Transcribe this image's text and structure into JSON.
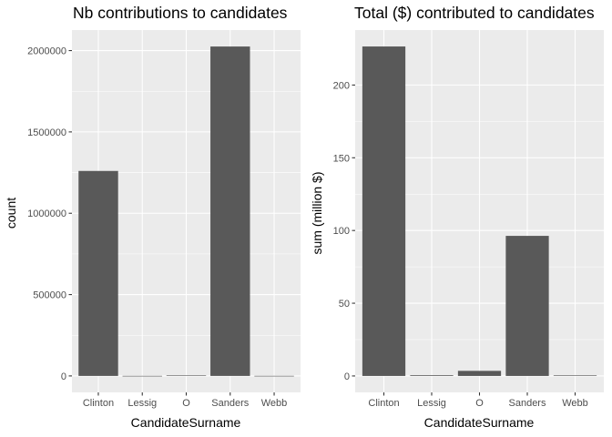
{
  "chart_data": [
    {
      "type": "bar",
      "title": "Nb contributions to candidates",
      "xlabel": "CandidateSurname",
      "ylabel": "count",
      "categories": [
        "Clinton",
        "Lessig",
        "O",
        "Sanders",
        "Webb"
      ],
      "values": [
        1260000,
        500,
        3000,
        2025000,
        600
      ],
      "ylim": [
        -101250,
        2126250
      ],
      "yticks": [
        0,
        500000,
        1000000,
        1500000,
        2000000
      ],
      "ytick_labels": [
        "0",
        "500000",
        "1000000",
        "1500000",
        "2000000"
      ],
      "grid": true,
      "bar_color": "#595959",
      "panel_color": "#ebebeb"
    },
    {
      "type": "bar",
      "title": "Total ($) contributed to candidates",
      "xlabel": "CandidateSurname",
      "ylabel": "sum (million $)",
      "categories": [
        "Clinton",
        "Lessig",
        "O",
        "Sanders",
        "Webb"
      ],
      "values": [
        226.5,
        0.5,
        3.5,
        96.3,
        0.4
      ],
      "ylim": [
        -11.3,
        237.8
      ],
      "yticks": [
        0,
        50,
        100,
        150,
        200
      ],
      "ytick_labels": [
        "0",
        "50",
        "100",
        "150",
        "200"
      ],
      "grid": true,
      "bar_color": "#595959",
      "panel_color": "#ebebeb"
    }
  ]
}
